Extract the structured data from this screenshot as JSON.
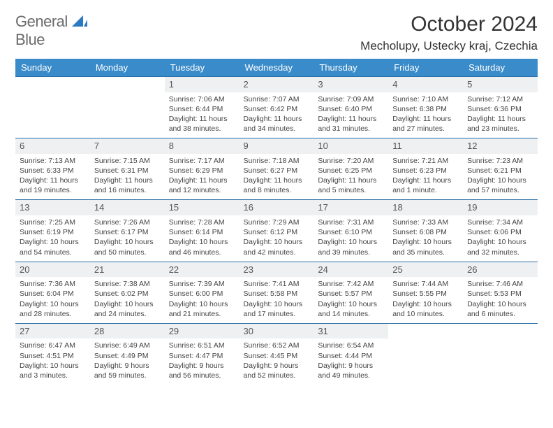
{
  "logo": {
    "line1": "General",
    "line2": "Blue"
  },
  "title": "October 2024",
  "location": "Mecholupy, Ustecky kraj, Czechia",
  "colors": {
    "header_bg": "#3a8bc9",
    "header_text": "#ffffff",
    "row_border": "#2a6fa8",
    "daynum_bg": "#eef0f2",
    "logo_gray": "#6b6b6b",
    "logo_blue": "#2a7ac0"
  },
  "weekdays": [
    "Sunday",
    "Monday",
    "Tuesday",
    "Wednesday",
    "Thursday",
    "Friday",
    "Saturday"
  ],
  "weeks": [
    [
      {
        "empty": true
      },
      {
        "empty": true
      },
      {
        "day": "1",
        "sunrise": "Sunrise: 7:06 AM",
        "sunset": "Sunset: 6:44 PM",
        "daylight": "Daylight: 11 hours and 38 minutes."
      },
      {
        "day": "2",
        "sunrise": "Sunrise: 7:07 AM",
        "sunset": "Sunset: 6:42 PM",
        "daylight": "Daylight: 11 hours and 34 minutes."
      },
      {
        "day": "3",
        "sunrise": "Sunrise: 7:09 AM",
        "sunset": "Sunset: 6:40 PM",
        "daylight": "Daylight: 11 hours and 31 minutes."
      },
      {
        "day": "4",
        "sunrise": "Sunrise: 7:10 AM",
        "sunset": "Sunset: 6:38 PM",
        "daylight": "Daylight: 11 hours and 27 minutes."
      },
      {
        "day": "5",
        "sunrise": "Sunrise: 7:12 AM",
        "sunset": "Sunset: 6:36 PM",
        "daylight": "Daylight: 11 hours and 23 minutes."
      }
    ],
    [
      {
        "day": "6",
        "sunrise": "Sunrise: 7:13 AM",
        "sunset": "Sunset: 6:33 PM",
        "daylight": "Daylight: 11 hours and 19 minutes."
      },
      {
        "day": "7",
        "sunrise": "Sunrise: 7:15 AM",
        "sunset": "Sunset: 6:31 PM",
        "daylight": "Daylight: 11 hours and 16 minutes."
      },
      {
        "day": "8",
        "sunrise": "Sunrise: 7:17 AM",
        "sunset": "Sunset: 6:29 PM",
        "daylight": "Daylight: 11 hours and 12 minutes."
      },
      {
        "day": "9",
        "sunrise": "Sunrise: 7:18 AM",
        "sunset": "Sunset: 6:27 PM",
        "daylight": "Daylight: 11 hours and 8 minutes."
      },
      {
        "day": "10",
        "sunrise": "Sunrise: 7:20 AM",
        "sunset": "Sunset: 6:25 PM",
        "daylight": "Daylight: 11 hours and 5 minutes."
      },
      {
        "day": "11",
        "sunrise": "Sunrise: 7:21 AM",
        "sunset": "Sunset: 6:23 PM",
        "daylight": "Daylight: 11 hours and 1 minute."
      },
      {
        "day": "12",
        "sunrise": "Sunrise: 7:23 AM",
        "sunset": "Sunset: 6:21 PM",
        "daylight": "Daylight: 10 hours and 57 minutes."
      }
    ],
    [
      {
        "day": "13",
        "sunrise": "Sunrise: 7:25 AM",
        "sunset": "Sunset: 6:19 PM",
        "daylight": "Daylight: 10 hours and 54 minutes."
      },
      {
        "day": "14",
        "sunrise": "Sunrise: 7:26 AM",
        "sunset": "Sunset: 6:17 PM",
        "daylight": "Daylight: 10 hours and 50 minutes."
      },
      {
        "day": "15",
        "sunrise": "Sunrise: 7:28 AM",
        "sunset": "Sunset: 6:14 PM",
        "daylight": "Daylight: 10 hours and 46 minutes."
      },
      {
        "day": "16",
        "sunrise": "Sunrise: 7:29 AM",
        "sunset": "Sunset: 6:12 PM",
        "daylight": "Daylight: 10 hours and 42 minutes."
      },
      {
        "day": "17",
        "sunrise": "Sunrise: 7:31 AM",
        "sunset": "Sunset: 6:10 PM",
        "daylight": "Daylight: 10 hours and 39 minutes."
      },
      {
        "day": "18",
        "sunrise": "Sunrise: 7:33 AM",
        "sunset": "Sunset: 6:08 PM",
        "daylight": "Daylight: 10 hours and 35 minutes."
      },
      {
        "day": "19",
        "sunrise": "Sunrise: 7:34 AM",
        "sunset": "Sunset: 6:06 PM",
        "daylight": "Daylight: 10 hours and 32 minutes."
      }
    ],
    [
      {
        "day": "20",
        "sunrise": "Sunrise: 7:36 AM",
        "sunset": "Sunset: 6:04 PM",
        "daylight": "Daylight: 10 hours and 28 minutes."
      },
      {
        "day": "21",
        "sunrise": "Sunrise: 7:38 AM",
        "sunset": "Sunset: 6:02 PM",
        "daylight": "Daylight: 10 hours and 24 minutes."
      },
      {
        "day": "22",
        "sunrise": "Sunrise: 7:39 AM",
        "sunset": "Sunset: 6:00 PM",
        "daylight": "Daylight: 10 hours and 21 minutes."
      },
      {
        "day": "23",
        "sunrise": "Sunrise: 7:41 AM",
        "sunset": "Sunset: 5:58 PM",
        "daylight": "Daylight: 10 hours and 17 minutes."
      },
      {
        "day": "24",
        "sunrise": "Sunrise: 7:42 AM",
        "sunset": "Sunset: 5:57 PM",
        "daylight": "Daylight: 10 hours and 14 minutes."
      },
      {
        "day": "25",
        "sunrise": "Sunrise: 7:44 AM",
        "sunset": "Sunset: 5:55 PM",
        "daylight": "Daylight: 10 hours and 10 minutes."
      },
      {
        "day": "26",
        "sunrise": "Sunrise: 7:46 AM",
        "sunset": "Sunset: 5:53 PM",
        "daylight": "Daylight: 10 hours and 6 minutes."
      }
    ],
    [
      {
        "day": "27",
        "sunrise": "Sunrise: 6:47 AM",
        "sunset": "Sunset: 4:51 PM",
        "daylight": "Daylight: 10 hours and 3 minutes."
      },
      {
        "day": "28",
        "sunrise": "Sunrise: 6:49 AM",
        "sunset": "Sunset: 4:49 PM",
        "daylight": "Daylight: 9 hours and 59 minutes."
      },
      {
        "day": "29",
        "sunrise": "Sunrise: 6:51 AM",
        "sunset": "Sunset: 4:47 PM",
        "daylight": "Daylight: 9 hours and 56 minutes."
      },
      {
        "day": "30",
        "sunrise": "Sunrise: 6:52 AM",
        "sunset": "Sunset: 4:45 PM",
        "daylight": "Daylight: 9 hours and 52 minutes."
      },
      {
        "day": "31",
        "sunrise": "Sunrise: 6:54 AM",
        "sunset": "Sunset: 4:44 PM",
        "daylight": "Daylight: 9 hours and 49 minutes."
      },
      {
        "empty": true
      },
      {
        "empty": true
      }
    ]
  ]
}
